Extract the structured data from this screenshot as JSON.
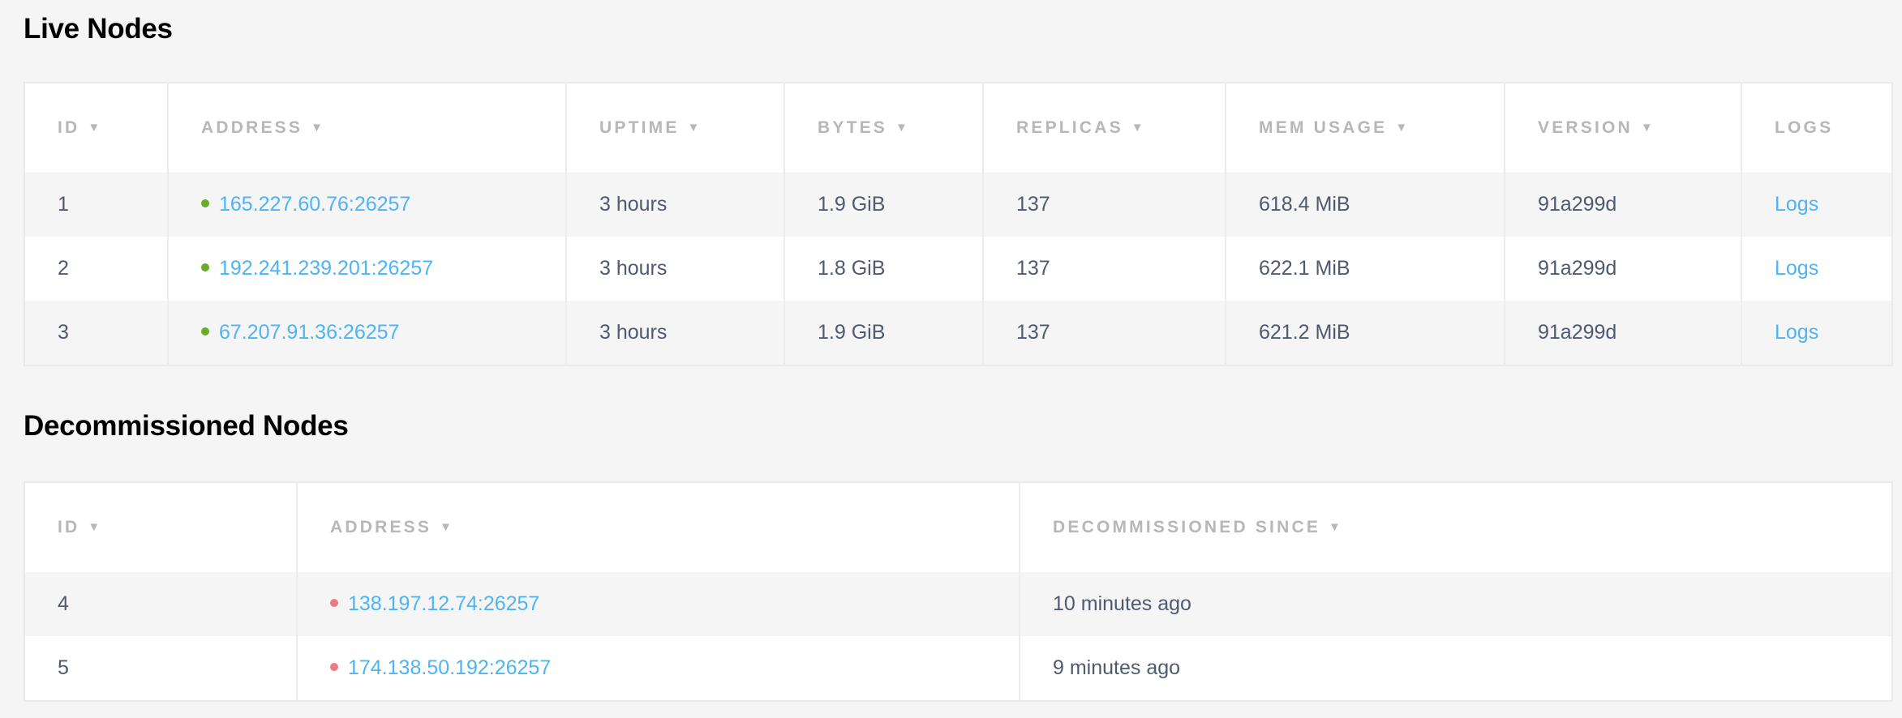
{
  "colors": {
    "link": "#4db4f5",
    "live_status": "#6aab2a",
    "decommissioned_status": "#ee7a85",
    "background": "#f5f5f5"
  },
  "live": {
    "title": "Live Nodes",
    "columns": [
      {
        "label": "ID",
        "sortable": true
      },
      {
        "label": "ADDRESS",
        "sortable": true
      },
      {
        "label": "UPTIME",
        "sortable": true
      },
      {
        "label": "BYTES",
        "sortable": true
      },
      {
        "label": "REPLICAS",
        "sortable": true
      },
      {
        "label": "MEM USAGE",
        "sortable": true
      },
      {
        "label": "VERSION",
        "sortable": true
      },
      {
        "label": "LOGS",
        "sortable": false
      }
    ],
    "sort_arrow": "▼",
    "rows": [
      {
        "id": "1",
        "address": "165.227.60.76:26257",
        "uptime": "3 hours",
        "bytes": "1.9 GiB",
        "replicas": "137",
        "mem_usage": "618.4 MiB",
        "version": "91a299d",
        "logs": "Logs"
      },
      {
        "id": "2",
        "address": "192.241.239.201:26257",
        "uptime": "3 hours",
        "bytes": "1.8 GiB",
        "replicas": "137",
        "mem_usage": "622.1 MiB",
        "version": "91a299d",
        "logs": "Logs"
      },
      {
        "id": "3",
        "address": "67.207.91.36:26257",
        "uptime": "3 hours",
        "bytes": "1.9 GiB",
        "replicas": "137",
        "mem_usage": "621.2 MiB",
        "version": "91a299d",
        "logs": "Logs"
      }
    ]
  },
  "decommissioned": {
    "title": "Decommissioned Nodes",
    "columns": [
      {
        "label": "ID",
        "sortable": true
      },
      {
        "label": "ADDRESS",
        "sortable": true
      },
      {
        "label": "DECOMMISSIONED SINCE",
        "sortable": true
      }
    ],
    "sort_arrow": "▼",
    "rows": [
      {
        "id": "4",
        "address": "138.197.12.74:26257",
        "since": "10 minutes ago"
      },
      {
        "id": "5",
        "address": "174.138.50.192:26257",
        "since": "9 minutes ago"
      }
    ]
  }
}
